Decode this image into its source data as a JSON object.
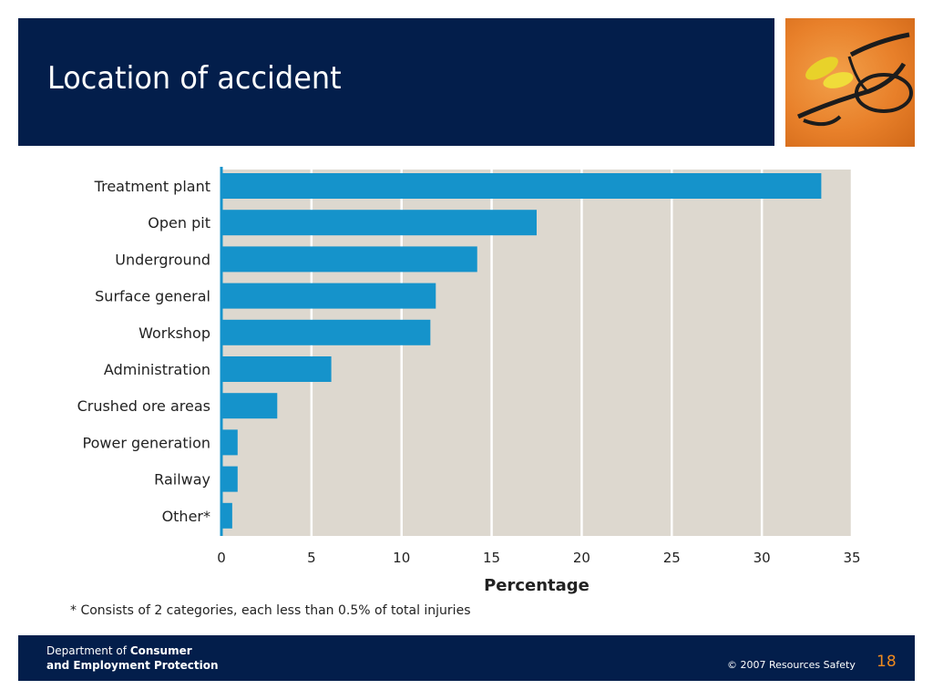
{
  "slide": {
    "title": "Location of accident",
    "footnote": "* Consists of 2 categories, each less than 0.5% of total injuries"
  },
  "footer": {
    "dept_prefix": "Department of ",
    "dept_name_1": "Consumer",
    "dept_name_2": "and Employment Protection",
    "copyright": "© 2007 Resources Safety",
    "page_number": "18"
  },
  "colors": {
    "title_bar": "#031e4b",
    "bar": "#1593cb",
    "plot_bg": "#ddd8cf",
    "page_number": "#ef8a1e"
  },
  "photo": {
    "icon": "safety-glasses-and-earplugs-photo"
  },
  "chart_data": {
    "type": "bar",
    "orientation": "horizontal",
    "categories": [
      "Treatment plant",
      "Open pit",
      "Underground",
      "Surface general",
      "Workshop",
      "Administration",
      "Crushed ore areas",
      "Power generation",
      "Railway",
      "Other*"
    ],
    "values": [
      33.3,
      17.5,
      14.2,
      11.9,
      11.6,
      6.1,
      3.1,
      0.9,
      0.9,
      0.6
    ],
    "xlabel": "Percentage",
    "ylabel": "",
    "xlim": [
      0,
      35
    ],
    "xticks": [
      0,
      5,
      10,
      15,
      20,
      25,
      30,
      35
    ],
    "grid": true
  }
}
